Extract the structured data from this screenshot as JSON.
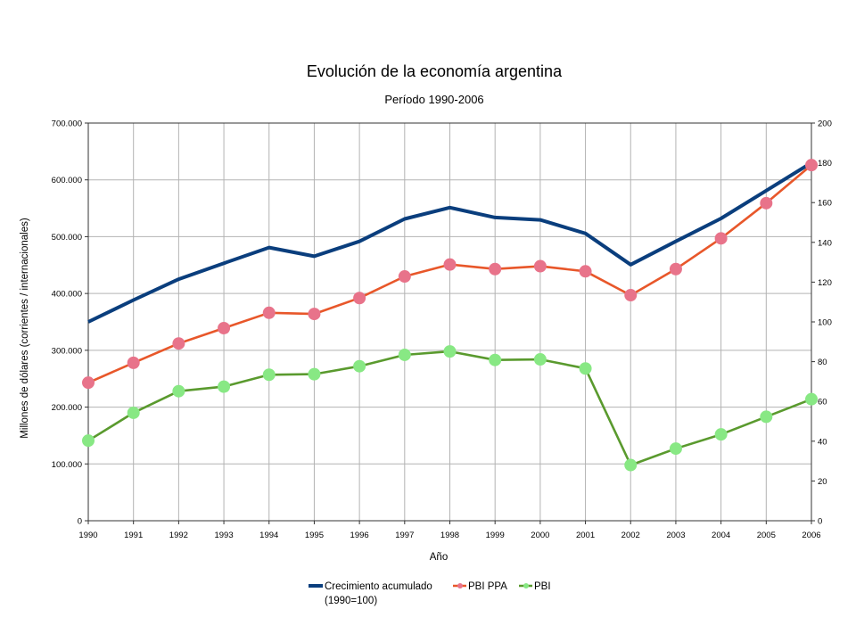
{
  "chart_data": {
    "type": "line",
    "title": "Evolución de la economía argentina",
    "subtitle": "Período 1990-2006",
    "xlabel": "Año",
    "ylabel": "Millones de dólares (corrientes / internacionales)",
    "ylim": [
      0,
      700000
    ],
    "y2lim": [
      0,
      200
    ],
    "y_ticks": [
      "0",
      "100.000",
      "200.000",
      "300.000",
      "400.000",
      "500.000",
      "600.000",
      "700.000"
    ],
    "y2_ticks": [
      "0",
      "20",
      "40",
      "60",
      "80",
      "100",
      "120",
      "140",
      "160",
      "180",
      "200"
    ],
    "categories": [
      "1990",
      "1991",
      "1992",
      "1993",
      "1994",
      "1995",
      "1996",
      "1997",
      "1998",
      "1999",
      "2000",
      "2001",
      "2002",
      "2003",
      "2004",
      "2005",
      "2006"
    ],
    "grid": true,
    "legend_position": "bottom",
    "series": [
      {
        "name": "Crecimiento acumulado",
        "name_line2": "(1990=100)",
        "axis": "right",
        "color": "#0a3e7d",
        "marker": "none",
        "values": [
          100,
          111,
          121.5,
          129.5,
          137.4,
          133,
          140.5,
          151.8,
          157.5,
          152.5,
          151.3,
          144.5,
          128.8,
          140.5,
          152,
          166,
          180
        ]
      },
      {
        "name": "PBI PPA",
        "axis": "left",
        "color": "#e8572a",
        "marker_color": "#e8738a",
        "marker": "circle",
        "values": [
          243000,
          278000,
          312000,
          339000,
          366000,
          364000,
          392000,
          430000,
          451000,
          443000,
          448000,
          439000,
          397000,
          443000,
          497000,
          559000,
          626000
        ]
      },
      {
        "name": "PBI",
        "axis": "left",
        "color": "#5a9a2e",
        "marker_color": "#88e884",
        "marker": "circle",
        "values": [
          141000,
          190000,
          228000,
          236000,
          257000,
          258000,
          272000,
          292000,
          298000,
          283000,
          284000,
          268000,
          98000,
          127000,
          152000,
          183000,
          214000
        ]
      }
    ]
  }
}
